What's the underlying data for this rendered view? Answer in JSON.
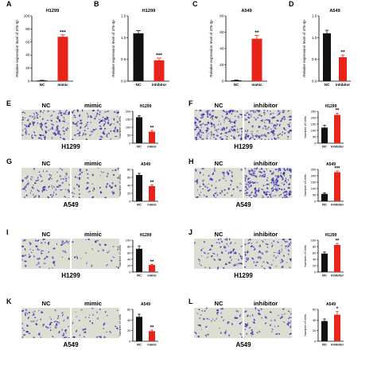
{
  "colors": {
    "nc": "#111111",
    "treatment": "#e8231a",
    "stain_bg": "#ddddd2",
    "stain_cell": "#3a35b4"
  },
  "panels": {
    "A": {
      "letter": "A",
      "title": "H1299",
      "ylabel": "Relative expression level of 376-3p",
      "sig": "***"
    },
    "B": {
      "letter": "B",
      "title": "H1299",
      "ylabel": "Relative expression level of 376-3p",
      "sig": "***"
    },
    "C": {
      "letter": "C",
      "title": "A549",
      "ylabel": "Relative expression level of 376-3p",
      "sig": "**"
    },
    "D": {
      "letter": "D",
      "title": "A549",
      "ylabel": "Relative expression level of 376-3p",
      "sig": "**"
    },
    "E": {
      "letter": "E",
      "left_label": "NC",
      "right_label": "mimic",
      "cell_line": "H1299",
      "title": "H1299",
      "ylabel": "Number of cells",
      "sig": "**"
    },
    "F": {
      "letter": "F",
      "left_label": "NC",
      "right_label": "inhibitor",
      "cell_line": "H1299",
      "title": "H1299",
      "ylabel": "Number of cells",
      "sig": "**"
    },
    "G": {
      "letter": "G",
      "left_label": "NC",
      "right_label": "mimic",
      "cell_line": "A549",
      "title": "A549",
      "ylabel": "Number of cells",
      "sig": "**"
    },
    "H": {
      "letter": "H",
      "left_label": "NC",
      "right_label": "inhibitor",
      "cell_line": "A549",
      "title": "A549",
      "ylabel": "Number of cells",
      "sig": "***"
    },
    "I": {
      "letter": "I",
      "left_label": "NC",
      "right_label": "mimic",
      "cell_line": "H1299",
      "title": "H1299",
      "ylabel": "Number of cells",
      "sig": "**"
    },
    "J": {
      "letter": "J",
      "left_label": "NC",
      "right_label": "inhibitor",
      "cell_line": "H1299",
      "title": "H1299",
      "ylabel": "Number of cells",
      "sig": "**"
    },
    "K": {
      "letter": "K",
      "left_label": "NC",
      "right_label": "mimic",
      "cell_line": "A549",
      "title": "A549",
      "ylabel": "Number of cells",
      "sig": "**"
    },
    "L": {
      "letter": "L",
      "left_label": "NC",
      "right_label": "inhibitor",
      "cell_line": "A549",
      "title": "A549",
      "ylabel": "Number of cells",
      "sig": "*"
    }
  },
  "chart_data": [
    {
      "panel": "A",
      "type": "bar",
      "title": "H1299",
      "ylabel": "Relative expression level of 376-3p",
      "categories": [
        "NC",
        "mimic"
      ],
      "values": [
        1,
        68
      ],
      "errors": [
        0.3,
        3
      ],
      "ylim": [
        0,
        100
      ],
      "yticks": [
        0,
        20,
        40,
        60,
        80,
        100
      ]
    },
    {
      "panel": "B",
      "type": "bar",
      "title": "H1299",
      "ylabel": "Relative expression level of 376-3p",
      "categories": [
        "NC",
        "inhibitor"
      ],
      "values": [
        1.1,
        0.48
      ],
      "errors": [
        0.06,
        0.05
      ],
      "ylim": [
        0,
        1.5
      ],
      "yticks": [
        0.0,
        0.5,
        1.0,
        1.5
      ]
    },
    {
      "panel": "C",
      "type": "bar",
      "title": "A549",
      "ylabel": "Relative expression level of 376-3p",
      "categories": [
        "NC",
        "mimic"
      ],
      "values": [
        1,
        52
      ],
      "errors": [
        0.3,
        4
      ],
      "ylim": [
        0,
        80
      ],
      "yticks": [
        0,
        20,
        40,
        60,
        80
      ]
    },
    {
      "panel": "D",
      "type": "bar",
      "title": "A549",
      "ylabel": "Relative expression level of 376-3p",
      "categories": [
        "NC",
        "inhibitor"
      ],
      "values": [
        1.1,
        0.55
      ],
      "errors": [
        0.07,
        0.05
      ],
      "ylim": [
        0,
        1.5
      ],
      "yticks": [
        0.0,
        0.5,
        1.0,
        1.5
      ]
    },
    {
      "panel": "E",
      "type": "bar",
      "title": "H1299",
      "ylabel": "Number of cells",
      "categories": [
        "NC",
        "mimic"
      ],
      "values": [
        163,
        72
      ],
      "errors": [
        10,
        8
      ],
      "ylim": [
        0,
        200
      ],
      "yticks": [
        0,
        50,
        100,
        150,
        200
      ]
    },
    {
      "panel": "F",
      "type": "bar",
      "title": "H1299",
      "ylabel": "Number of cells",
      "categories": [
        "NC",
        "inhibitor"
      ],
      "values": [
        122,
        222
      ],
      "errors": [
        18,
        14
      ],
      "ylim": [
        0,
        250
      ],
      "yticks": [
        0,
        50,
        100,
        150,
        200,
        250
      ]
    },
    {
      "panel": "G",
      "type": "bar",
      "title": "A549",
      "ylabel": "Number of cells",
      "categories": [
        "NC",
        "mimic"
      ],
      "values": [
        66,
        38
      ],
      "errors": [
        4,
        3
      ],
      "ylim": [
        0,
        80
      ],
      "yticks": [
        0,
        20,
        40,
        60,
        80
      ]
    },
    {
      "panel": "H",
      "type": "bar",
      "title": "A549",
      "ylabel": "Number of cells",
      "categories": [
        "NC",
        "inhibitor"
      ],
      "values": [
        58,
        228
      ],
      "errors": [
        8,
        10
      ],
      "ylim": [
        0,
        250
      ],
      "yticks": [
        0,
        50,
        100,
        150,
        200,
        250
      ]
    },
    {
      "panel": "I",
      "type": "bar",
      "title": "H1299",
      "ylabel": "Number of cells",
      "categories": [
        "NC",
        "mimic"
      ],
      "values": [
        73,
        22
      ],
      "errors": [
        9,
        2
      ],
      "ylim": [
        0,
        100
      ],
      "yticks": [
        0,
        20,
        40,
        60,
        80,
        100
      ]
    },
    {
      "panel": "J",
      "type": "bar",
      "title": "H1299",
      "ylabel": "Number of cells",
      "categories": [
        "NC",
        "inhibitor"
      ],
      "values": [
        58,
        85
      ],
      "errors": [
        5,
        5
      ],
      "ylim": [
        0,
        100
      ],
      "yticks": [
        0,
        20,
        40,
        60,
        80,
        100
      ]
    },
    {
      "panel": "K",
      "type": "bar",
      "title": "A549",
      "ylabel": "Number of cells",
      "categories": [
        "NC",
        "mimic"
      ],
      "values": [
        46,
        19
      ],
      "errors": [
        5,
        2
      ],
      "ylim": [
        0,
        60
      ],
      "yticks": [
        0,
        20,
        40,
        60
      ]
    },
    {
      "panel": "L",
      "type": "bar",
      "title": "A549",
      "ylabel": "Number of cells",
      "categories": [
        "NC",
        "inhibitor"
      ],
      "values": [
        38,
        50
      ],
      "errors": [
        4,
        6
      ],
      "ylim": [
        0,
        60
      ],
      "yticks": [
        0,
        20,
        40,
        60
      ]
    }
  ]
}
